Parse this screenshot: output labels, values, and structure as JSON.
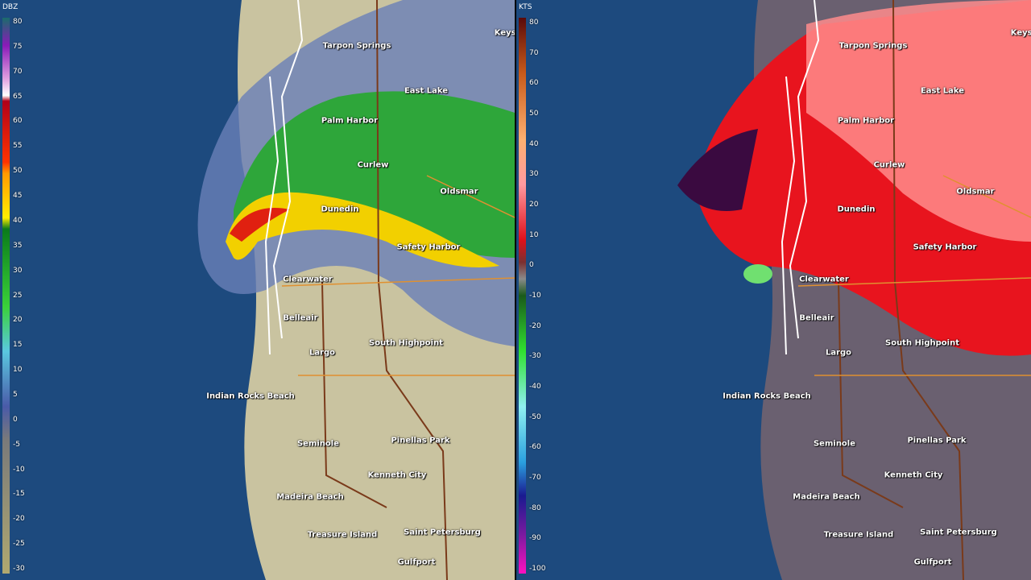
{
  "left_panel": {
    "unit": "DBZ",
    "scale_labels": [
      "80",
      "75",
      "70",
      "65",
      "60",
      "55",
      "50",
      "45",
      "40",
      "35",
      "30",
      "25",
      "20",
      "15",
      "10",
      "5",
      "0",
      "-5",
      "-10",
      "-15",
      "-20",
      "-25",
      "-30"
    ],
    "places": [
      "Tarpon Springs",
      "Keystone",
      "East Lake",
      "Palm Harbor",
      "Curlew",
      "Oldsmar",
      "Dunedin",
      "Safety Harbor",
      "Clearwater",
      "Belleair",
      "South Highpoint",
      "Largo",
      "Indian Rocks Beach",
      "Seminole",
      "Pinellas Park",
      "Kenneth City",
      "Madeira Beach",
      "Treasure Island",
      "Saint Petersburg",
      "Gulfport"
    ]
  },
  "right_panel": {
    "unit": "KTS",
    "scale_labels": [
      "80",
      "70",
      "60",
      "50",
      "40",
      "30",
      "20",
      "10",
      "0",
      "-10",
      "-20",
      "-30",
      "-40",
      "-50",
      "-60",
      "-70",
      "-80",
      "-90",
      "-100"
    ],
    "places": [
      "Tarpon Springs",
      "Keystone",
      "East Lake",
      "Palm Harbor",
      "Curlew",
      "Oldsmar",
      "Dunedin",
      "Safety Harbor",
      "Clearwater",
      "Belleair",
      "South Highpoint",
      "Largo",
      "Indian Rocks Beach",
      "Seminole",
      "Pinellas Park",
      "Kenneth City",
      "Madeira Beach",
      "Treasure Island",
      "Saint Petersburg",
      "Gulfport"
    ]
  }
}
